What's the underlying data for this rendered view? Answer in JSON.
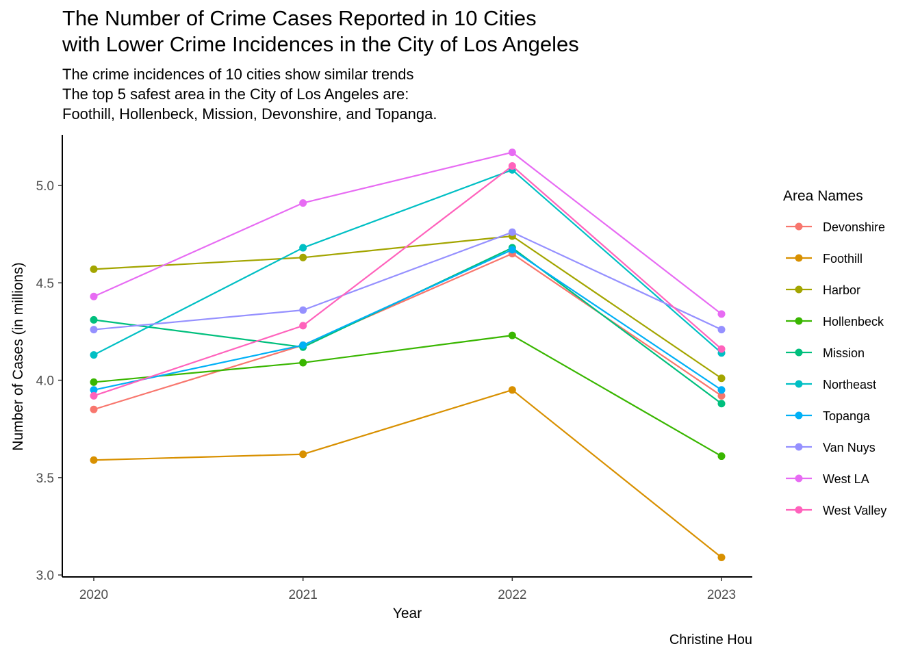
{
  "chart_data": {
    "type": "line",
    "title_lines": [
      "The Number of Crime Cases Reported in 10 Cities",
      "with Lower Crime Incidences in the City of Los Angeles"
    ],
    "subtitle_lines": [
      "The crime incidences of 10 cities show similar trends",
      "The top 5 safest area in the City of Los Angeles are:",
      "Foothill, Hollenbeck, Mission, Devonshire, and Topanga."
    ],
    "xlabel": "Year",
    "ylabel": "Number of Cases (in millions)",
    "caption": "Christine Hou",
    "legend_title": "Area Names",
    "legend_position": "right",
    "grid": false,
    "x": [
      2020,
      2021,
      2022,
      2023
    ],
    "x_tick_labels": [
      "2020",
      "2021",
      "2022",
      "2023"
    ],
    "ylim": [
      2.99,
      5.26
    ],
    "y_ticks": [
      3.0,
      3.5,
      4.0,
      4.5,
      5.0
    ],
    "y_tick_labels": [
      "3.0",
      "3.5",
      "4.0",
      "4.5",
      "5.0"
    ],
    "series": [
      {
        "name": "Devonshire",
        "color": "#F8766D",
        "values": [
          3.85,
          4.18,
          4.65,
          3.92
        ]
      },
      {
        "name": "Foothill",
        "color": "#D89000",
        "values": [
          3.59,
          3.62,
          3.95,
          3.09
        ]
      },
      {
        "name": "Harbor",
        "color": "#A3A500",
        "values": [
          4.57,
          4.63,
          4.74,
          4.01
        ]
      },
      {
        "name": "Hollenbeck",
        "color": "#39B600",
        "values": [
          3.99,
          4.09,
          4.23,
          3.61
        ]
      },
      {
        "name": "Mission",
        "color": "#00BF7D",
        "values": [
          4.31,
          4.17,
          4.68,
          3.88
        ]
      },
      {
        "name": "Northeast",
        "color": "#00BFC4",
        "values": [
          4.13,
          4.68,
          5.08,
          4.14
        ]
      },
      {
        "name": "Topanga",
        "color": "#00B0F6",
        "values": [
          3.95,
          4.18,
          4.67,
          3.95
        ]
      },
      {
        "name": "Van Nuys",
        "color": "#9590FF",
        "values": [
          4.26,
          4.36,
          4.76,
          4.26
        ]
      },
      {
        "name": "West LA",
        "color": "#E76BF3",
        "values": [
          4.43,
          4.91,
          5.17,
          4.34
        ]
      },
      {
        "name": "West Valley",
        "color": "#FF62BC",
        "values": [
          3.92,
          4.28,
          5.1,
          4.16
        ]
      }
    ]
  }
}
